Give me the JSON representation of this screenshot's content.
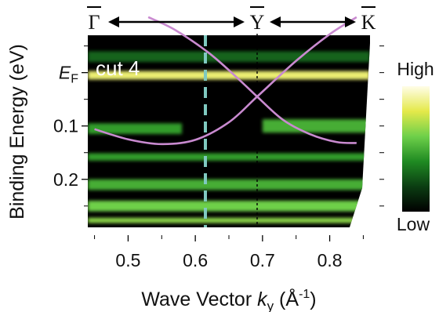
{
  "chart_data": {
    "type": "heatmap",
    "title": "",
    "panel_label": "cut 4",
    "xlabel_prefix": "Wave Vector ",
    "xlabel_var": "k",
    "xlabel_sub": "y",
    "xlabel_unit_open": " (Å",
    "xlabel_unit_sup": "-1",
    "xlabel_unit_close": ")",
    "ylabel": "Binding Energy (eV)",
    "xlim": [
      0.44,
      0.86
    ],
    "ylim": [
      -0.07,
      0.29
    ],
    "x_ticks": [
      0.5,
      0.6,
      0.7,
      0.8
    ],
    "x_tick_labels": [
      "0.5",
      "0.6",
      "0.7",
      "0.8"
    ],
    "y_ticks": [
      0.0,
      0.1,
      0.2
    ],
    "y_tick_labels": [
      "EF",
      "0.1",
      "0.2"
    ],
    "y_ef_main": "E",
    "y_ef_sub": "F",
    "colorbar": {
      "high_label": "High",
      "low_label": "Low",
      "colors": [
        "#000000",
        "#0b3d12",
        "#1f8a22",
        "#6ed04a",
        "#e4e94a",
        "#fffde8"
      ]
    },
    "high_symmetry_points": [
      {
        "label": "Γ",
        "x": 0.44
      },
      {
        "label": "Y",
        "x": 0.692
      },
      {
        "label": "K",
        "x": 0.86
      }
    ],
    "markers": [
      {
        "kind": "dashed-line",
        "color": "#7fc9c0",
        "x": 0.615
      },
      {
        "kind": "dotted-line",
        "color": "#000000",
        "x": 0.692
      }
    ],
    "bands": [
      {
        "color": "#c98ad0",
        "x": [
          0.45,
          0.5,
          0.55,
          0.6,
          0.65,
          0.692,
          0.75,
          0.8,
          0.84
        ],
        "y": [
          0.106,
          0.125,
          0.134,
          0.126,
          0.093,
          0.045,
          -0.022,
          -0.072,
          -0.104
        ]
      },
      {
        "color": "#c98ad0",
        "x": [
          0.53,
          0.57,
          0.62,
          0.66,
          0.692,
          0.73,
          0.77,
          0.81,
          0.84
        ],
        "y": [
          -0.104,
          -0.08,
          -0.037,
          0.007,
          0.045,
          0.088,
          0.115,
          0.13,
          0.132
        ]
      }
    ],
    "intensity_features": [
      {
        "kind": "band",
        "y": 0.005,
        "x_range": [
          0.44,
          0.86
        ],
        "intensity": 0.85,
        "width": 0.016
      },
      {
        "kind": "band",
        "y": 0.105,
        "x_range": [
          0.44,
          0.58
        ],
        "intensity": 0.45,
        "width": 0.02
      },
      {
        "kind": "band",
        "y": 0.158,
        "x_range": [
          0.44,
          0.86
        ],
        "intensity": 0.45,
        "width": 0.014
      },
      {
        "kind": "band",
        "y": 0.21,
        "x_range": [
          0.44,
          0.86
        ],
        "intensity": 0.5,
        "width": 0.02
      },
      {
        "kind": "band",
        "y": 0.25,
        "x_range": [
          0.44,
          0.86
        ],
        "intensity": 0.6,
        "width": 0.02
      },
      {
        "kind": "band",
        "y": 0.277,
        "x_range": [
          0.44,
          0.86
        ],
        "intensity": 0.65,
        "width": 0.01
      },
      {
        "kind": "band",
        "y": -0.03,
        "x_range": [
          0.44,
          0.86
        ],
        "intensity": 0.3,
        "width": 0.02
      },
      {
        "kind": "band",
        "y": 0.1,
        "x_range": [
          0.7,
          0.86
        ],
        "intensity": 0.5,
        "width": 0.025
      }
    ]
  }
}
